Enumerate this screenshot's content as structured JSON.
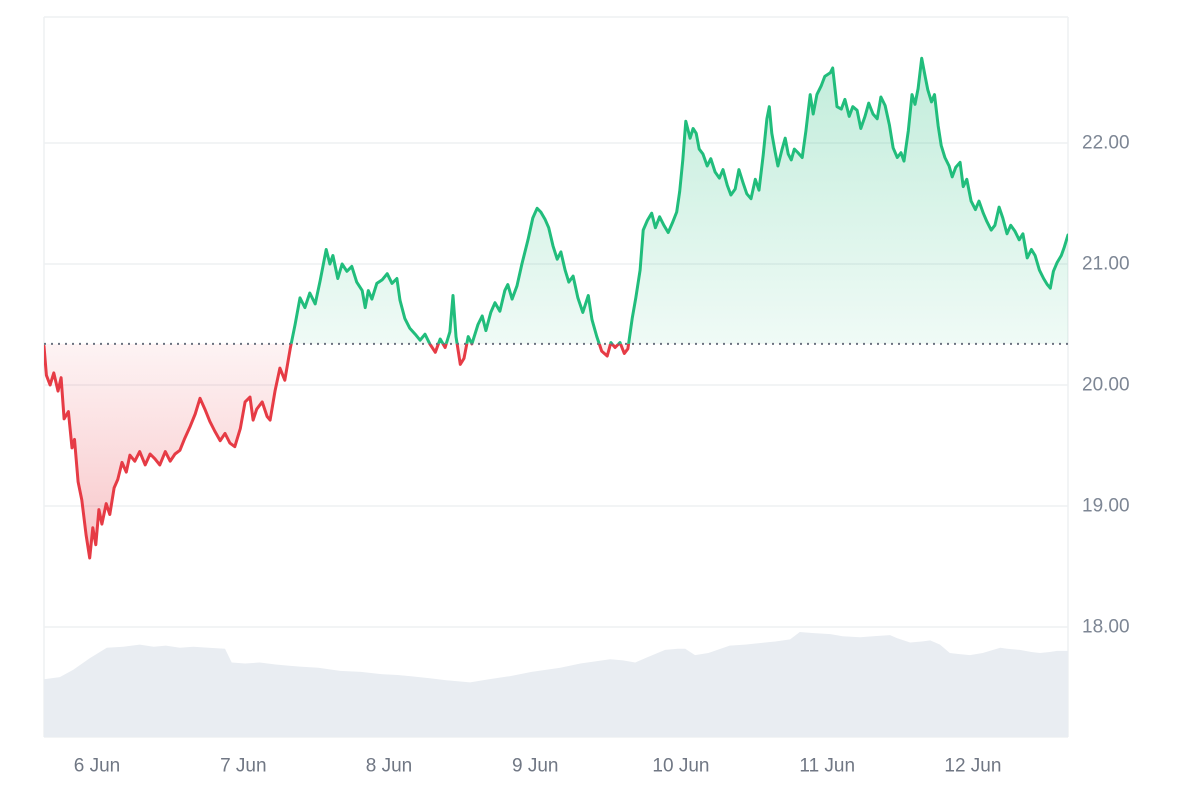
{
  "chart_data": {
    "type": "line",
    "description": "7-day price chart with previous-close baseline coloring and volume silhouette",
    "x_axis": {
      "tick_labels": [
        "6 Jun",
        "7 Jun",
        "8 Jun",
        "9 Jun",
        "10 Jun",
        "11 Jun",
        "12 Jun"
      ],
      "tick_t_hours": [
        8.7,
        32.7,
        56.6,
        80.6,
        104.5,
        128.5,
        152.4
      ],
      "total_hours": 168,
      "grid": false
    },
    "y_axis": {
      "tick_labels": [
        "22.00",
        "21.00",
        "20.00",
        "19.00",
        "18.00"
      ],
      "tick_values": [
        22,
        21,
        20,
        19,
        18
      ],
      "range": [
        17.1,
        23.0
      ],
      "position": "right",
      "grid": true
    },
    "baseline": {
      "value": 20.34,
      "style": "dotted"
    },
    "legend": {
      "shown": false
    },
    "price_series": {
      "name": "Price",
      "points": [
        [
          0,
          20.32
        ],
        [
          0.4,
          20.08
        ],
        [
          1,
          20.0
        ],
        [
          1.6,
          20.1
        ],
        [
          2.3,
          19.95
        ],
        [
          2.8,
          20.06
        ],
        [
          3.3,
          19.72
        ],
        [
          4,
          19.78
        ],
        [
          4.6,
          19.48
        ],
        [
          5,
          19.55
        ],
        [
          5.6,
          19.2
        ],
        [
          6.2,
          19.05
        ],
        [
          6.9,
          18.76
        ],
        [
          7.5,
          18.57
        ],
        [
          8,
          18.82
        ],
        [
          8.5,
          18.68
        ],
        [
          9,
          18.97
        ],
        [
          9.5,
          18.85
        ],
        [
          10.2,
          19.02
        ],
        [
          10.8,
          18.93
        ],
        [
          11.5,
          19.15
        ],
        [
          12.1,
          19.22
        ],
        [
          12.8,
          19.36
        ],
        [
          13.5,
          19.28
        ],
        [
          14.1,
          19.42
        ],
        [
          14.9,
          19.37
        ],
        [
          15.7,
          19.45
        ],
        [
          16.6,
          19.34
        ],
        [
          17.4,
          19.43
        ],
        [
          18.2,
          19.39
        ],
        [
          19,
          19.34
        ],
        [
          19.9,
          19.45
        ],
        [
          20.7,
          19.37
        ],
        [
          21.5,
          19.43
        ],
        [
          22.3,
          19.46
        ],
        [
          23.1,
          19.56
        ],
        [
          24,
          19.66
        ],
        [
          24.8,
          19.76
        ],
        [
          25.6,
          19.89
        ],
        [
          26.4,
          19.8
        ],
        [
          27.2,
          19.7
        ],
        [
          28,
          19.62
        ],
        [
          28.9,
          19.54
        ],
        [
          29.7,
          19.6
        ],
        [
          30.5,
          19.52
        ],
        [
          31.3,
          19.49
        ],
        [
          32.2,
          19.64
        ],
        [
          33,
          19.86
        ],
        [
          33.8,
          19.9
        ],
        [
          34.3,
          19.71
        ],
        [
          34.9,
          19.8
        ],
        [
          35.8,
          19.86
        ],
        [
          36.6,
          19.74
        ],
        [
          37.1,
          19.71
        ],
        [
          37.9,
          19.95
        ],
        [
          38.7,
          20.14
        ],
        [
          39.5,
          20.04
        ],
        [
          40.4,
          20.3
        ],
        [
          41.2,
          20.5
        ],
        [
          42,
          20.72
        ],
        [
          42.8,
          20.64
        ],
        [
          43.6,
          20.76
        ],
        [
          44.5,
          20.67
        ],
        [
          45.3,
          20.86
        ],
        [
          46.3,
          21.12
        ],
        [
          46.9,
          21.0
        ],
        [
          47.4,
          21.07
        ],
        [
          48.2,
          20.88
        ],
        [
          48.9,
          21.0
        ],
        [
          49.7,
          20.94
        ],
        [
          50.5,
          20.98
        ],
        [
          51.3,
          20.85
        ],
        [
          52.2,
          20.78
        ],
        [
          52.7,
          20.64
        ],
        [
          53.2,
          20.78
        ],
        [
          53.8,
          20.71
        ],
        [
          54.6,
          20.84
        ],
        [
          55.5,
          20.87
        ],
        [
          56.3,
          20.92
        ],
        [
          57.1,
          20.84
        ],
        [
          57.9,
          20.88
        ],
        [
          58.4,
          20.7
        ],
        [
          59.2,
          20.55
        ],
        [
          60,
          20.47
        ],
        [
          60.9,
          20.42
        ],
        [
          61.7,
          20.37
        ],
        [
          62.5,
          20.42
        ],
        [
          63.3,
          20.34
        ],
        [
          64.2,
          20.27
        ],
        [
          65,
          20.38
        ],
        [
          65.8,
          20.31
        ],
        [
          66.6,
          20.44
        ],
        [
          67.1,
          20.74
        ],
        [
          67.6,
          20.4
        ],
        [
          68.3,
          20.17
        ],
        [
          68.9,
          20.22
        ],
        [
          69.6,
          20.4
        ],
        [
          70.2,
          20.34
        ],
        [
          71.2,
          20.5
        ],
        [
          71.9,
          20.57
        ],
        [
          72.5,
          20.45
        ],
        [
          73.3,
          20.6
        ],
        [
          74,
          20.68
        ],
        [
          74.8,
          20.61
        ],
        [
          75.6,
          20.78
        ],
        [
          76.1,
          20.83
        ],
        [
          76.8,
          20.71
        ],
        [
          77.6,
          20.82
        ],
        [
          78.4,
          21.0
        ],
        [
          79.4,
          21.2
        ],
        [
          80.2,
          21.38
        ],
        [
          80.9,
          21.46
        ],
        [
          81.5,
          21.43
        ],
        [
          82.2,
          21.37
        ],
        [
          82.8,
          21.3
        ],
        [
          83.5,
          21.15
        ],
        [
          84.2,
          21.04
        ],
        [
          84.8,
          21.1
        ],
        [
          85.5,
          20.95
        ],
        [
          86.1,
          20.85
        ],
        [
          86.8,
          20.9
        ],
        [
          87.6,
          20.72
        ],
        [
          88.4,
          20.6
        ],
        [
          89.3,
          20.74
        ],
        [
          89.9,
          20.54
        ],
        [
          90.7,
          20.4
        ],
        [
          91.5,
          20.28
        ],
        [
          92.4,
          20.24
        ],
        [
          93,
          20.35
        ],
        [
          93.7,
          20.31
        ],
        [
          94.5,
          20.35
        ],
        [
          95.2,
          20.26
        ],
        [
          95.8,
          20.3
        ],
        [
          96.5,
          20.55
        ],
        [
          97.1,
          20.72
        ],
        [
          97.8,
          20.95
        ],
        [
          98.3,
          21.28
        ],
        [
          99,
          21.36
        ],
        [
          99.7,
          21.42
        ],
        [
          100.3,
          21.3
        ],
        [
          101,
          21.39
        ],
        [
          101.7,
          21.32
        ],
        [
          102.4,
          21.26
        ],
        [
          103.1,
          21.34
        ],
        [
          103.8,
          21.43
        ],
        [
          104.3,
          21.6
        ],
        [
          104.8,
          21.86
        ],
        [
          105.3,
          22.18
        ],
        [
          106,
          22.04
        ],
        [
          106.5,
          22.12
        ],
        [
          107,
          22.08
        ],
        [
          107.5,
          21.95
        ],
        [
          108.1,
          21.91
        ],
        [
          108.8,
          21.81
        ],
        [
          109.4,
          21.87
        ],
        [
          110.1,
          21.76
        ],
        [
          110.8,
          21.71
        ],
        [
          111.4,
          21.78
        ],
        [
          112.1,
          21.65
        ],
        [
          112.7,
          21.57
        ],
        [
          113.4,
          21.62
        ],
        [
          114,
          21.78
        ],
        [
          114.7,
          21.67
        ],
        [
          115.3,
          21.58
        ],
        [
          116,
          21.54
        ],
        [
          116.7,
          21.7
        ],
        [
          117.3,
          21.61
        ],
        [
          118,
          21.9
        ],
        [
          118.6,
          22.2
        ],
        [
          119,
          22.3
        ],
        [
          119.4,
          22.08
        ],
        [
          119.9,
          21.94
        ],
        [
          120.4,
          21.81
        ],
        [
          121.1,
          21.95
        ],
        [
          121.6,
          22.04
        ],
        [
          122.1,
          21.91
        ],
        [
          122.6,
          21.86
        ],
        [
          123.1,
          21.95
        ],
        [
          123.7,
          21.92
        ],
        [
          124.4,
          21.88
        ],
        [
          125,
          22.1
        ],
        [
          125.7,
          22.4
        ],
        [
          126.2,
          22.24
        ],
        [
          126.8,
          22.4
        ],
        [
          127.5,
          22.47
        ],
        [
          128.1,
          22.55
        ],
        [
          129,
          22.58
        ],
        [
          129.4,
          22.62
        ],
        [
          130.1,
          22.3
        ],
        [
          130.8,
          22.28
        ],
        [
          131.4,
          22.36
        ],
        [
          132.1,
          22.22
        ],
        [
          132.7,
          22.3
        ],
        [
          133.4,
          22.27
        ],
        [
          134,
          22.12
        ],
        [
          134.7,
          22.22
        ],
        [
          135.3,
          22.33
        ],
        [
          136,
          22.24
        ],
        [
          136.7,
          22.2
        ],
        [
          137.3,
          22.38
        ],
        [
          138,
          22.31
        ],
        [
          138.7,
          22.15
        ],
        [
          139.3,
          21.96
        ],
        [
          140,
          21.88
        ],
        [
          140.6,
          21.92
        ],
        [
          141.1,
          21.85
        ],
        [
          141.8,
          22.1
        ],
        [
          142.4,
          22.4
        ],
        [
          142.9,
          22.32
        ],
        [
          143.4,
          22.45
        ],
        [
          144,
          22.7
        ],
        [
          144.6,
          22.54
        ],
        [
          145,
          22.44
        ],
        [
          145.6,
          22.34
        ],
        [
          146.1,
          22.4
        ],
        [
          146.7,
          22.14
        ],
        [
          147.2,
          21.98
        ],
        [
          147.8,
          21.88
        ],
        [
          148.5,
          21.81
        ],
        [
          149,
          21.72
        ],
        [
          149.6,
          21.8
        ],
        [
          150.3,
          21.84
        ],
        [
          150.8,
          21.64
        ],
        [
          151.4,
          21.7
        ],
        [
          152.1,
          21.52
        ],
        [
          152.8,
          21.45
        ],
        [
          153.4,
          21.52
        ],
        [
          154.1,
          21.42
        ],
        [
          154.7,
          21.35
        ],
        [
          155.4,
          21.28
        ],
        [
          156,
          21.32
        ],
        [
          156.7,
          21.47
        ],
        [
          157.3,
          21.38
        ],
        [
          158,
          21.25
        ],
        [
          158.6,
          21.32
        ],
        [
          159.3,
          21.27
        ],
        [
          160,
          21.2
        ],
        [
          160.6,
          21.25
        ],
        [
          161.3,
          21.05
        ],
        [
          162,
          21.12
        ],
        [
          162.6,
          21.07
        ],
        [
          163.3,
          20.95
        ],
        [
          164,
          20.88
        ],
        [
          164.6,
          20.83
        ],
        [
          165.1,
          20.8
        ],
        [
          165.6,
          20.94
        ],
        [
          166.2,
          21.01
        ],
        [
          166.9,
          21.07
        ],
        [
          167.4,
          21.14
        ],
        [
          168,
          21.24
        ]
      ]
    },
    "volume_series": {
      "name": "Volume",
      "unit": "relative (0-1 of max)",
      "points": [
        [
          0,
          0.55
        ],
        [
          2.6,
          0.57
        ],
        [
          4.8,
          0.64
        ],
        [
          7.5,
          0.75
        ],
        [
          10.3,
          0.85
        ],
        [
          13,
          0.86
        ],
        [
          15.7,
          0.88
        ],
        [
          18,
          0.86
        ],
        [
          20,
          0.87
        ],
        [
          22.3,
          0.85
        ],
        [
          24.5,
          0.86
        ],
        [
          27,
          0.85
        ],
        [
          29.7,
          0.84
        ],
        [
          30.8,
          0.71
        ],
        [
          33,
          0.7
        ],
        [
          35.4,
          0.71
        ],
        [
          38,
          0.69
        ],
        [
          40,
          0.68
        ],
        [
          42,
          0.67
        ],
        [
          45,
          0.66
        ],
        [
          48.6,
          0.63
        ],
        [
          52,
          0.62
        ],
        [
          55.1,
          0.6
        ],
        [
          58,
          0.59
        ],
        [
          60,
          0.58
        ],
        [
          63.3,
          0.56
        ],
        [
          66,
          0.54
        ],
        [
          69.9,
          0.52
        ],
        [
          73,
          0.55
        ],
        [
          76.5,
          0.58
        ],
        [
          80,
          0.62
        ],
        [
          84.7,
          0.66
        ],
        [
          88,
          0.7
        ],
        [
          92.9,
          0.74
        ],
        [
          95,
          0.73
        ],
        [
          97,
          0.71
        ],
        [
          99,
          0.76
        ],
        [
          101.9,
          0.83
        ],
        [
          104,
          0.84
        ],
        [
          105.2,
          0.84
        ],
        [
          106.8,
          0.78
        ],
        [
          109,
          0.8
        ],
        [
          112.5,
          0.87
        ],
        [
          115,
          0.88
        ],
        [
          118.3,
          0.9
        ],
        [
          120,
          0.91
        ],
        [
          122.4,
          0.93
        ],
        [
          124,
          1.0
        ],
        [
          126,
          0.99
        ],
        [
          129,
          0.98
        ],
        [
          131,
          0.96
        ],
        [
          133.9,
          0.95
        ],
        [
          136,
          0.96
        ],
        [
          138.8,
          0.97
        ],
        [
          140,
          0.94
        ],
        [
          142.1,
          0.9
        ],
        [
          144,
          0.91
        ],
        [
          145.4,
          0.92
        ],
        [
          147,
          0.88
        ],
        [
          148.6,
          0.8
        ],
        [
          150,
          0.79
        ],
        [
          151.9,
          0.78
        ],
        [
          154,
          0.8
        ],
        [
          156.9,
          0.85
        ],
        [
          158,
          0.84
        ],
        [
          160.1,
          0.83
        ],
        [
          162,
          0.81
        ],
        [
          163.4,
          0.8
        ],
        [
          165,
          0.81
        ],
        [
          166.2,
          0.82
        ],
        [
          168,
          0.82
        ]
      ]
    },
    "colors": {
      "up": "#21bd7c",
      "down": "#e63b45",
      "up_fill": "#21bd7c",
      "down_fill": "#e63b45",
      "volume": "#e9edf2",
      "grid": "#eef0f2",
      "baseline_dots": "#6b7280",
      "y_label": "#7d8694",
      "x_label": "#707784",
      "background": "#ffffff"
    }
  }
}
